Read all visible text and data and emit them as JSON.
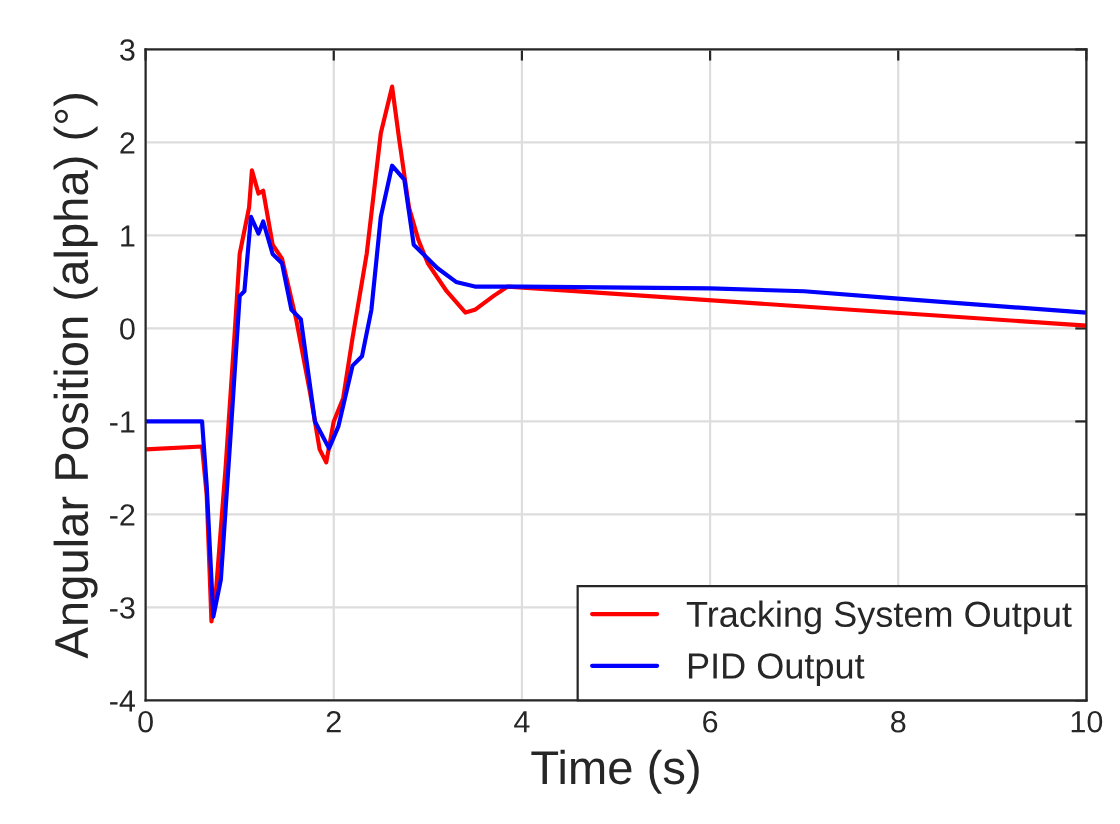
{
  "chart_data": {
    "type": "line",
    "xlabel": "Time (s)",
    "ylabel": "Angular Position (alpha) (°)",
    "xlim": [
      0,
      10
    ],
    "ylim": [
      -4,
      3
    ],
    "xticks": [
      0,
      2,
      4,
      6,
      8,
      10
    ],
    "yticks": [
      -4,
      -3,
      -2,
      -1,
      0,
      1,
      2,
      3
    ],
    "grid": true,
    "legend": "bottom right",
    "series": [
      {
        "name": "Tracking System Output",
        "color": "#ff0000",
        "x": [
          0,
          0.6,
          0.65,
          0.7,
          0.75,
          0.85,
          0.95,
          1.0,
          1.1,
          1.13,
          1.2,
          1.25,
          1.35,
          1.45,
          1.6,
          1.75,
          1.85,
          1.92,
          2.0,
          2.1,
          2.2,
          2.35,
          2.5,
          2.62,
          2.7,
          2.8,
          2.9,
          3.0,
          3.2,
          3.4,
          3.5,
          3.7,
          3.85,
          10
        ],
        "values": [
          -1.3,
          -1.27,
          -1.8,
          -3.15,
          -2.8,
          -1.5,
          0,
          0.8,
          1.3,
          1.7,
          1.45,
          1.48,
          0.9,
          0.75,
          0.1,
          -0.7,
          -1.3,
          -1.44,
          -1.0,
          -0.75,
          -0.1,
          0.8,
          2.1,
          2.6,
          2.0,
          1.3,
          0.95,
          0.7,
          0.4,
          0.17,
          0.2,
          0.35,
          0.45,
          0.03
        ]
      },
      {
        "name": "PID Output",
        "color": "#0000ff",
        "x": [
          0,
          0.6,
          0.65,
          0.72,
          0.8,
          0.9,
          1.0,
          1.05,
          1.12,
          1.2,
          1.25,
          1.35,
          1.45,
          1.55,
          1.65,
          1.8,
          1.95,
          2.05,
          2.2,
          2.3,
          2.4,
          2.5,
          2.62,
          2.75,
          2.85,
          2.95,
          3.1,
          3.3,
          3.5,
          4,
          6,
          7,
          8,
          10
        ],
        "values": [
          -1.0,
          -1.0,
          -1.7,
          -3.1,
          -2.7,
          -1.2,
          0.35,
          0.4,
          1.2,
          1.02,
          1.15,
          0.8,
          0.7,
          0.2,
          0.1,
          -1.0,
          -1.29,
          -1.05,
          -0.4,
          -0.3,
          0.2,
          1.2,
          1.75,
          1.6,
          0.9,
          0.8,
          0.65,
          0.5,
          0.45,
          0.45,
          0.43,
          0.4,
          0.32,
          0.17
        ]
      }
    ]
  }
}
